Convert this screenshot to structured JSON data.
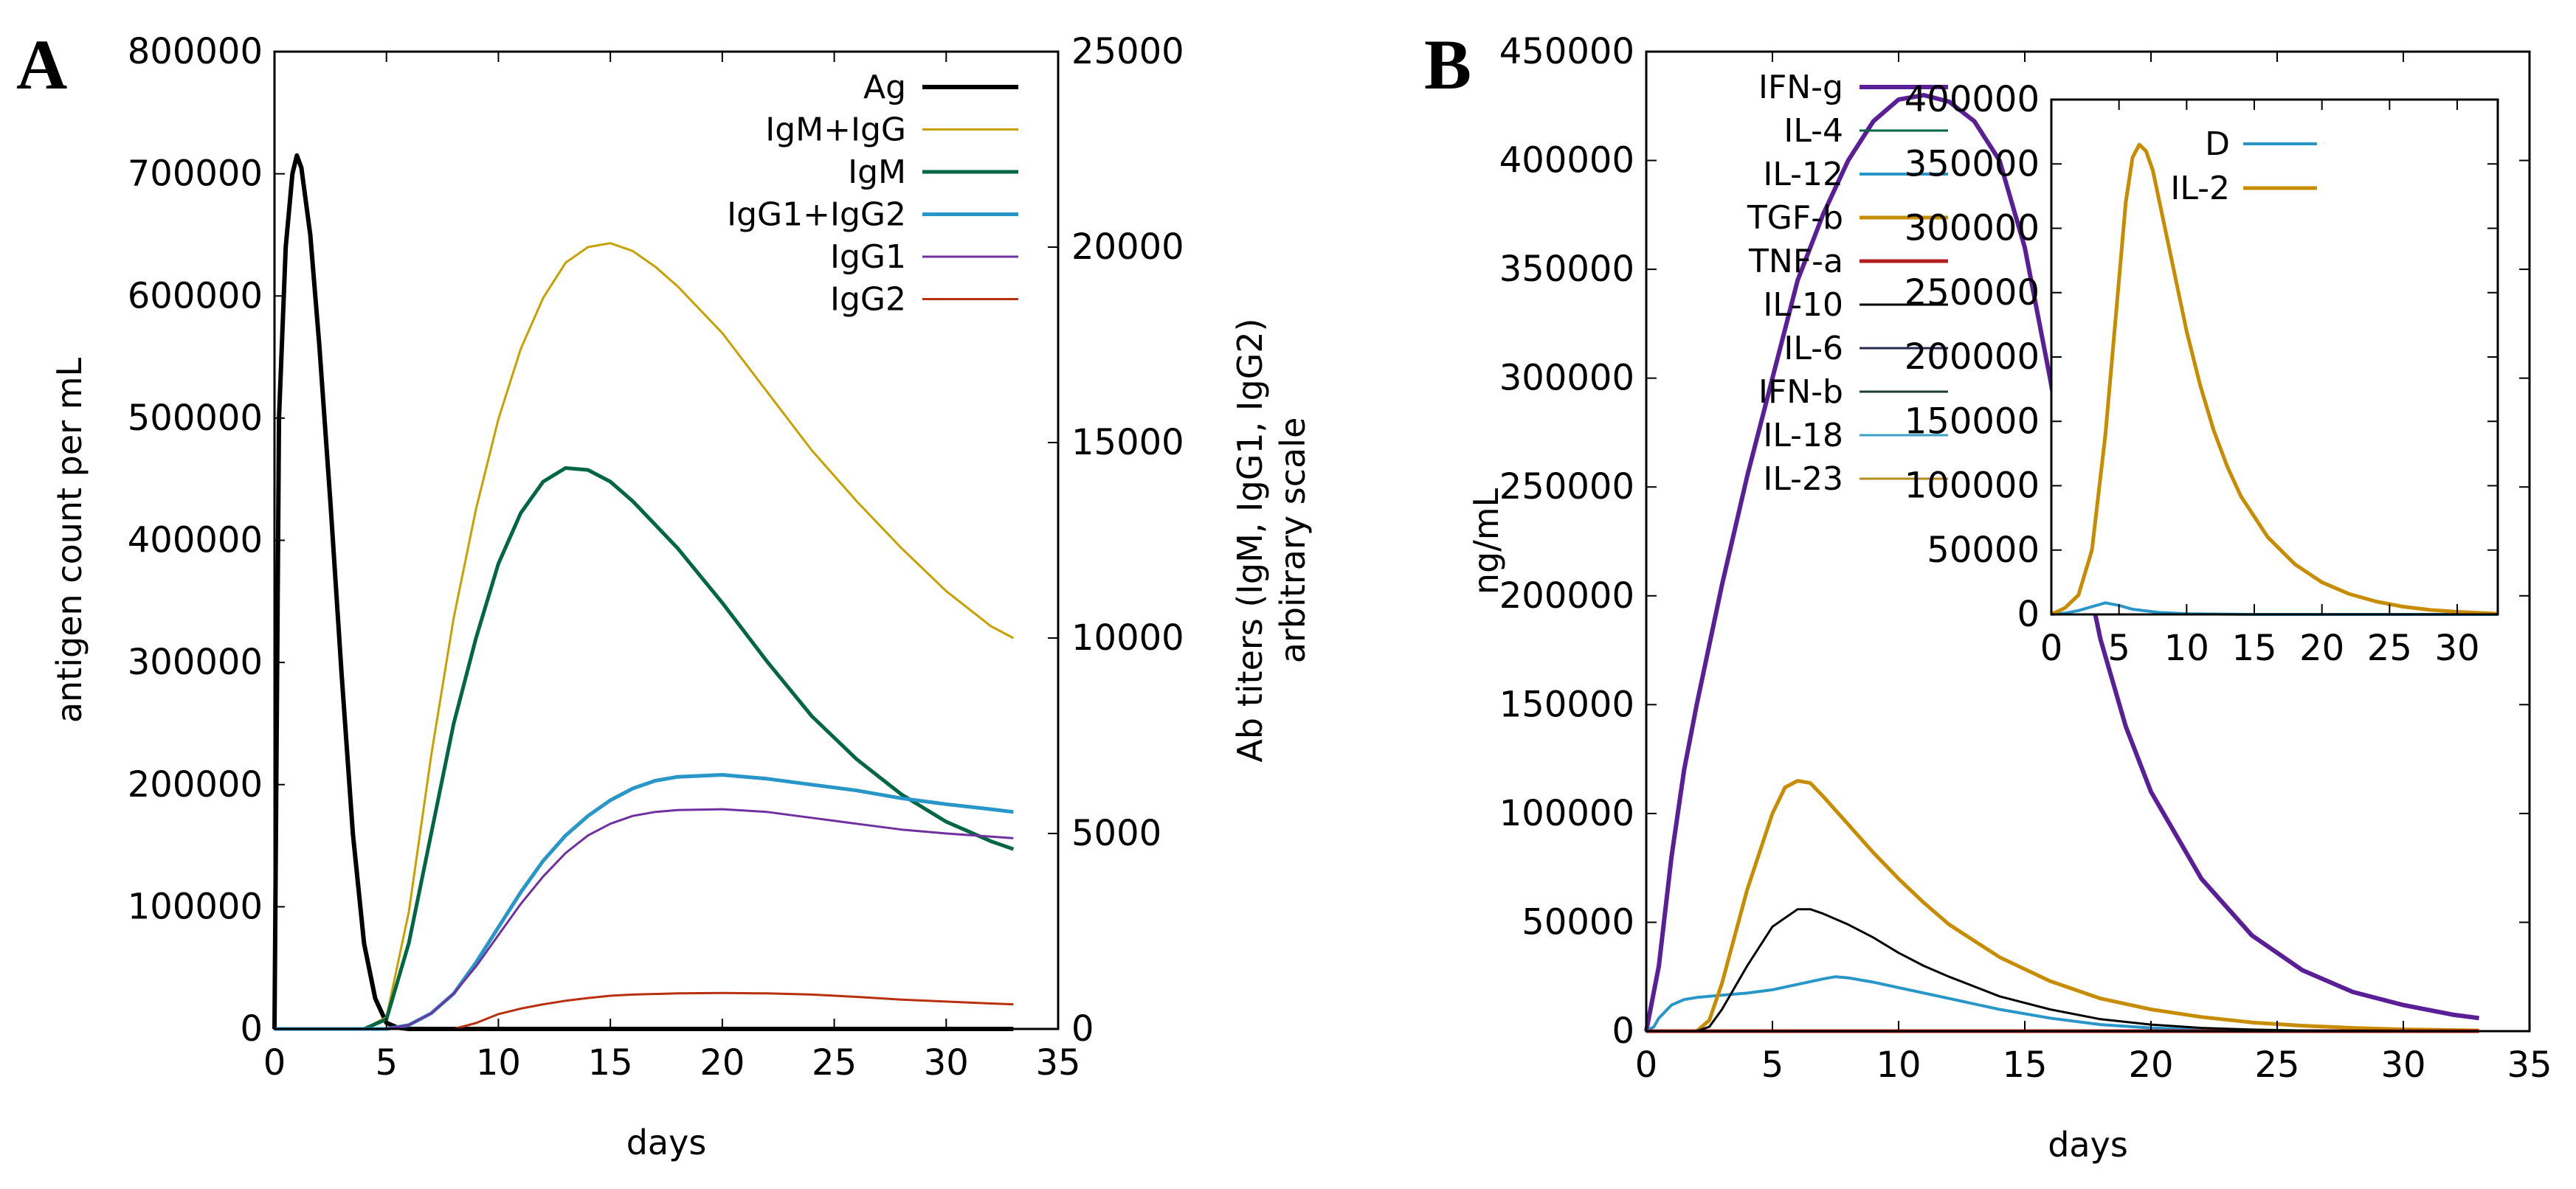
{
  "panels": {
    "A": {
      "letter": "A"
    },
    "B": {
      "letter": "B"
    }
  },
  "chart_data": [
    {
      "id": "A",
      "type": "line",
      "title": "",
      "xlabel": "days",
      "ylabel": "antigen count per mL",
      "y2label_lines": [
        "Ab titers (IgM, IgG1, IgG2)",
        "arbitrary scale"
      ],
      "xlim": [
        0,
        35
      ],
      "ylim": [
        0,
        800000
      ],
      "y2lim": [
        0,
        25000
      ],
      "xticks": [
        0,
        5,
        10,
        15,
        20,
        25,
        30,
        35
      ],
      "yticks": [
        0,
        100000,
        200000,
        300000,
        400000,
        500000,
        600000,
        700000,
        800000
      ],
      "y2ticks": [
        0,
        5000,
        10000,
        15000,
        20000,
        25000
      ],
      "legend_position": "top-right",
      "grid": false,
      "series": [
        {
          "name": "Ag",
          "axis": "y1",
          "color": "#000000",
          "width": 6,
          "x": [
            0,
            0.2,
            0.5,
            0.8,
            1,
            1.2,
            1.6,
            2,
            2.5,
            3,
            3.5,
            4,
            4.5,
            5,
            5.5,
            6,
            8,
            10,
            15,
            20,
            25,
            30,
            33
          ],
          "y": [
            0,
            500000,
            640000,
            700000,
            715000,
            705000,
            650000,
            560000,
            430000,
            290000,
            160000,
            70000,
            25000,
            5000,
            1000,
            0,
            0,
            0,
            0,
            0,
            0,
            0,
            0
          ]
        },
        {
          "name": "IgM+IgG",
          "axis": "y2",
          "color": "#c8a000",
          "width": 3,
          "x": [
            0,
            4,
            5,
            6,
            7,
            8,
            9,
            10,
            11,
            12,
            13,
            14,
            15,
            16,
            17,
            18,
            20,
            22,
            24,
            26,
            28,
            30,
            32,
            33
          ],
          "y": [
            0,
            0,
            300,
            3000,
            7000,
            10500,
            13300,
            15600,
            17400,
            18700,
            19600,
            20000,
            20100,
            19900,
            19500,
            19000,
            17800,
            16300,
            14800,
            13500,
            12300,
            11200,
            10300,
            10000
          ]
        },
        {
          "name": "IgM",
          "axis": "y2",
          "color": "#006644",
          "width": 5,
          "x": [
            0,
            4,
            5,
            6,
            7,
            8,
            9,
            10,
            11,
            12,
            13,
            14,
            15,
            16,
            18,
            20,
            22,
            24,
            26,
            28,
            30,
            32,
            33
          ],
          "y": [
            0,
            0,
            250,
            2200,
            5000,
            7800,
            10000,
            11900,
            13200,
            14000,
            14350,
            14300,
            14000,
            13500,
            12300,
            10900,
            9400,
            8000,
            6900,
            6000,
            5300,
            4800,
            4600
          ]
        },
        {
          "name": "IgG1+IgG2",
          "axis": "y2",
          "color": "#2896c8",
          "width": 5,
          "x": [
            0,
            5,
            6,
            7,
            8,
            9,
            10,
            11,
            12,
            13,
            14,
            15,
            16,
            17,
            18,
            20,
            22,
            24,
            26,
            28,
            30,
            32,
            33
          ],
          "y": [
            0,
            0,
            100,
            400,
            900,
            1700,
            2600,
            3500,
            4300,
            4950,
            5450,
            5850,
            6150,
            6350,
            6450,
            6500,
            6400,
            6250,
            6100,
            5900,
            5750,
            5620,
            5550
          ]
        },
        {
          "name": "IgG1",
          "axis": "y2",
          "color": "#7030a0",
          "width": 3,
          "x": [
            0,
            5,
            6,
            7,
            8,
            9,
            10,
            11,
            12,
            13,
            14,
            15,
            16,
            17,
            18,
            20,
            22,
            24,
            26,
            28,
            30,
            32,
            33
          ],
          "y": [
            0,
            0,
            100,
            400,
            900,
            1600,
            2400,
            3200,
            3900,
            4500,
            4950,
            5250,
            5450,
            5550,
            5600,
            5620,
            5550,
            5400,
            5250,
            5100,
            5000,
            4920,
            4880
          ]
        },
        {
          "name": "IgG2",
          "axis": "y2",
          "color": "#b83010",
          "width": 3,
          "x": [
            0,
            8,
            9,
            10,
            11,
            12,
            13,
            14,
            15,
            16,
            18,
            20,
            22,
            24,
            26,
            28,
            30,
            32,
            33
          ],
          "y": [
            0,
            0,
            150,
            380,
            520,
            630,
            720,
            790,
            850,
            880,
            910,
            920,
            910,
            880,
            820,
            750,
            700,
            650,
            630
          ]
        }
      ]
    },
    {
      "id": "B",
      "type": "line",
      "title": "",
      "xlabel": "days",
      "ylabel": "ng/mL",
      "xlim": [
        0,
        35
      ],
      "ylim": [
        0,
        450000
      ],
      "xticks": [
        0,
        5,
        10,
        15,
        20,
        25,
        30,
        35
      ],
      "yticks": [
        0,
        50000,
        100000,
        150000,
        200000,
        250000,
        300000,
        350000,
        400000,
        450000
      ],
      "legend_position": "top-left",
      "grid": false,
      "series": [
        {
          "name": "IFN-g",
          "color": "#5a1e96",
          "width": 6,
          "x": [
            0,
            0.5,
            1,
            1.5,
            2,
            3,
            4,
            5,
            6,
            7,
            8,
            9,
            10,
            11,
            12,
            13,
            14,
            15,
            16,
            17,
            18,
            19,
            20,
            22,
            24,
            26,
            28,
            30,
            32,
            33
          ],
          "y": [
            0,
            30000,
            80000,
            120000,
            150000,
            205000,
            255000,
            300000,
            345000,
            375000,
            400000,
            418000,
            428000,
            430000,
            427000,
            418000,
            400000,
            360000,
            300000,
            235000,
            180000,
            140000,
            110000,
            70000,
            44000,
            28000,
            18000,
            12000,
            7500,
            6000
          ]
        },
        {
          "name": "IL-4",
          "color": "#006644",
          "width": 3,
          "x": [
            0,
            33
          ],
          "y": [
            0,
            0
          ]
        },
        {
          "name": "IL-12",
          "color": "#2896c8",
          "width": 4,
          "x": [
            0,
            0.3,
            0.5,
            1,
            1.5,
            2,
            3,
            4,
            5,
            6,
            7,
            7.5,
            8,
            9,
            10,
            12,
            14,
            16,
            18,
            20,
            22,
            25,
            30,
            33
          ],
          "y": [
            0,
            2000,
            6000,
            12000,
            14500,
            15500,
            16500,
            17500,
            19000,
            21500,
            24000,
            25000,
            24500,
            22500,
            20000,
            15000,
            10000,
            6000,
            3000,
            1500,
            500,
            0,
            0,
            0
          ]
        },
        {
          "name": "TGF-b",
          "color": "#c88c00",
          "width": 5,
          "x": [
            0,
            2,
            2.5,
            3,
            4,
            5,
            5.5,
            6,
            6.5,
            7,
            8,
            9,
            10,
            11,
            12,
            14,
            16,
            18,
            20,
            22,
            24,
            26,
            28,
            30,
            33
          ],
          "y": [
            0,
            0,
            5000,
            22000,
            65000,
            100000,
            112000,
            115000,
            114000,
            108000,
            95000,
            82000,
            70000,
            59000,
            49000,
            34000,
            23000,
            15000,
            10000,
            6500,
            4000,
            2500,
            1500,
            800,
            300
          ]
        },
        {
          "name": "TNF-a",
          "color": "#b41e1e",
          "width": 5,
          "x": [
            0,
            33
          ],
          "y": [
            0,
            0
          ]
        },
        {
          "name": "IL-10",
          "color": "#000000",
          "width": 3,
          "x": [
            0,
            2,
            2.5,
            3,
            4,
            5,
            6,
            6.5,
            7,
            8,
            9,
            10,
            11,
            12,
            14,
            16,
            18,
            20,
            22,
            24,
            26,
            30,
            33
          ],
          "y": [
            0,
            0,
            2000,
            10000,
            30000,
            48000,
            56000,
            56000,
            54000,
            49000,
            43000,
            36000,
            30000,
            25000,
            16000,
            10000,
            5500,
            3000,
            1500,
            700,
            300,
            0,
            0
          ]
        },
        {
          "name": "IL-6",
          "color": "#282850",
          "width": 3,
          "x": [
            0,
            33
          ],
          "y": [
            0,
            0
          ]
        },
        {
          "name": "IFN-b",
          "color": "#1e3c3c",
          "width": 3,
          "x": [
            0,
            33
          ],
          "y": [
            0,
            0
          ]
        },
        {
          "name": "IL-18",
          "color": "#3ca0c8",
          "width": 3,
          "x": [
            0,
            33
          ],
          "y": [
            0,
            0
          ]
        },
        {
          "name": "IL-23",
          "color": "#b48c1e",
          "width": 3,
          "x": [
            0,
            33
          ],
          "y": [
            0,
            0
          ]
        }
      ]
    },
    {
      "id": "B-inset",
      "type": "line",
      "title": "",
      "xlabel": "",
      "ylabel": "",
      "xlim": [
        0,
        33
      ],
      "ylim": [
        0,
        400000
      ],
      "xticks": [
        0,
        5,
        10,
        15,
        20,
        25,
        30
      ],
      "yticks": [
        0,
        50000,
        100000,
        150000,
        200000,
        250000,
        300000,
        350000,
        400000
      ],
      "legend_position": "top-center",
      "grid": false,
      "series": [
        {
          "name": "D",
          "color": "#2896c8",
          "width": 4,
          "x": [
            0,
            1,
            2,
            3,
            4,
            5,
            6,
            8,
            10,
            15,
            20,
            33
          ],
          "y": [
            0,
            1000,
            3000,
            6000,
            9000,
            7000,
            4000,
            1500,
            500,
            0,
            0,
            0
          ]
        },
        {
          "name": "IL-2",
          "color": "#c88c00",
          "width": 5,
          "x": [
            0,
            1,
            2,
            3,
            4,
            5,
            5.5,
            6,
            6.5,
            7,
            7.5,
            8,
            9,
            10,
            11,
            12,
            13,
            14,
            16,
            18,
            20,
            22,
            24,
            26,
            28,
            30,
            32,
            33
          ],
          "y": [
            0,
            5000,
            15000,
            50000,
            140000,
            260000,
            320000,
            355000,
            365000,
            360000,
            345000,
            320000,
            270000,
            220000,
            178000,
            143000,
            115000,
            92000,
            60000,
            39000,
            25000,
            16000,
            10000,
            6000,
            3500,
            2000,
            1000,
            500
          ]
        }
      ]
    }
  ]
}
